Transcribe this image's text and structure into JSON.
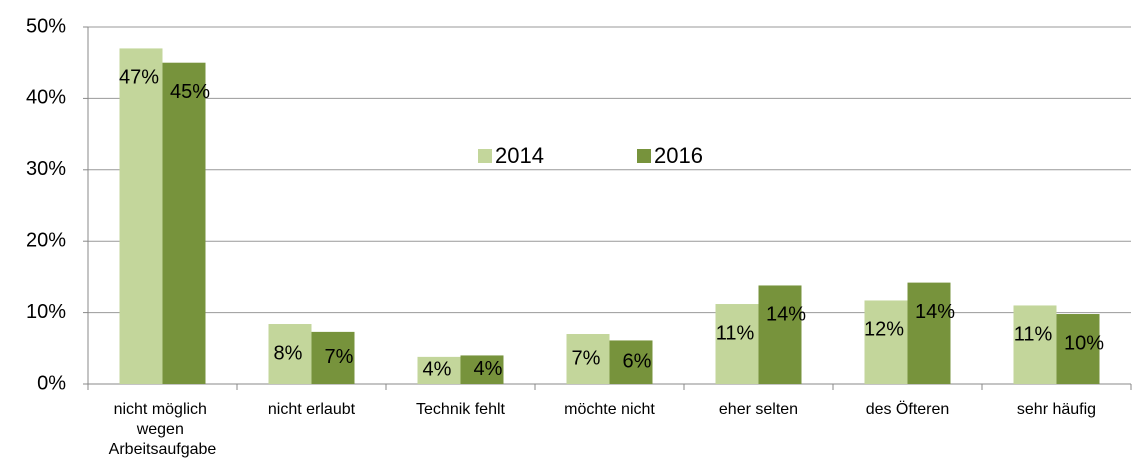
{
  "chart_data": {
    "type": "bar",
    "categories": [
      "nicht möglich wegen Arbeitsaufgabe",
      "nicht erlaubt",
      "Technik fehlt",
      "möchte nicht",
      "eher selten",
      "des Öfteren",
      "sehr häufig"
    ],
    "series": [
      {
        "name": "2014",
        "color": "#c3d69b",
        "values": [
          47,
          8.4,
          3.8,
          7,
          11.2,
          11.7,
          11
        ],
        "value_labels": [
          "47%",
          "8%",
          "4%",
          "7%",
          "11%",
          "12%",
          "11%"
        ]
      },
      {
        "name": "2016",
        "color": "#77933c",
        "values": [
          45,
          7.3,
          4,
          6.1,
          13.8,
          14.2,
          9.8
        ],
        "value_labels": [
          "45%",
          "7%",
          "4%",
          "6%",
          "14%",
          "14%",
          "10%"
        ]
      }
    ],
    "ylim": [
      0,
      50
    ],
    "yticks": [
      {
        "value": 0,
        "label": "0%"
      },
      {
        "value": 10,
        "label": "10%"
      },
      {
        "value": 20,
        "label": "20%"
      },
      {
        "value": 30,
        "label": "30%"
      },
      {
        "value": 40,
        "label": "40%"
      },
      {
        "value": 50,
        "label": "50%"
      }
    ],
    "grid": true,
    "legend": "center"
  }
}
